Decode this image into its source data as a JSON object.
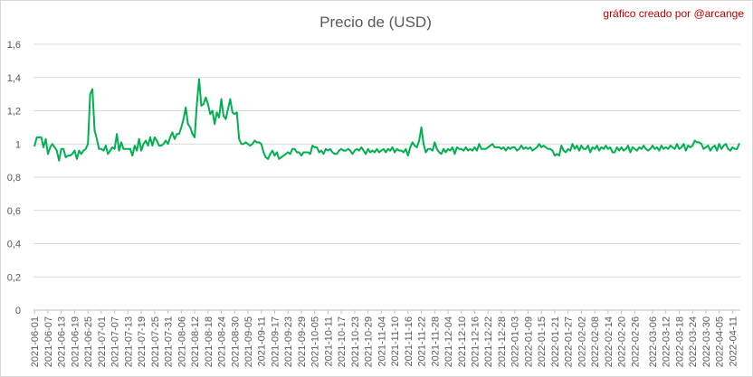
{
  "chart_data": {
    "type": "line",
    "title": "Precio de (USD)",
    "credit": "gráfico creado por @arcange",
    "colors": {
      "line": "#00b050",
      "credit": "#c00000",
      "grid": "#d9d9d9",
      "axis": "#bfbfbf",
      "text": "#595959"
    },
    "grid": true,
    "legend": "none",
    "ylim": [
      0,
      1.6
    ],
    "yticks": [
      0,
      0.2,
      0.4,
      0.6,
      0.8,
      1,
      1.2,
      1.4,
      1.6
    ],
    "ytick_labels": [
      "0",
      "0,2",
      "0,4",
      "0,6",
      "0,8",
      "1",
      "1,2",
      "1,4",
      "1,6"
    ],
    "x_start": "2021-06-01",
    "x_end": "2022-04-14",
    "x_tick_labels": [
      "2021-06-01",
      "2021-06-07",
      "2021-06-13",
      "2021-06-19",
      "2021-06-25",
      "2021-07-01",
      "2021-07-07",
      "2021-07-13",
      "2021-07-19",
      "2021-07-25",
      "2021-07-31",
      "2021-08-06",
      "2021-08-12",
      "2021-08-18",
      "2021-08-24",
      "2021-08-30",
      "2021-09-05",
      "2021-09-11",
      "2021-09-17",
      "2021-09-23",
      "2021-09-29",
      "2021-10-05",
      "2021-10-11",
      "2021-10-17",
      "2021-10-23",
      "2021-10-29",
      "2021-11-04",
      "2021-11-10",
      "2021-11-16",
      "2021-11-22",
      "2021-11-28",
      "2021-12-04",
      "2021-12-10",
      "2021-12-16",
      "2021-12-22",
      "2021-12-28",
      "2022-01-03",
      "2022-01-09",
      "2022-01-15",
      "2022-01-21",
      "2022-01-27",
      "2022-02-02",
      "2022-02-08",
      "2022-02-14",
      "2022-02-20",
      "2022-02-26",
      "2022-03-06",
      "2022-03-12",
      "2022-03-18",
      "2022-03-24",
      "2022-03-30",
      "2022-04-05",
      "2022-04-11"
    ],
    "points": [
      [
        "2021-06-01",
        0.99
      ],
      [
        "2021-06-02",
        1.04
      ],
      [
        "2021-06-03",
        1.04
      ],
      [
        "2021-06-04",
        1.04
      ],
      [
        "2021-06-05",
        0.98
      ],
      [
        "2021-06-06",
        1.03
      ],
      [
        "2021-06-07",
        0.94
      ],
      [
        "2021-06-08",
        0.98
      ],
      [
        "2021-06-09",
        1.0
      ],
      [
        "2021-06-10",
        0.98
      ],
      [
        "2021-06-11",
        0.96
      ],
      [
        "2021-06-12",
        0.9
      ],
      [
        "2021-06-13",
        0.97
      ],
      [
        "2021-06-14",
        0.97
      ],
      [
        "2021-06-15",
        0.92
      ],
      [
        "2021-06-16",
        0.93
      ],
      [
        "2021-06-17",
        0.93
      ],
      [
        "2021-06-18",
        0.94
      ],
      [
        "2021-06-19",
        0.96
      ],
      [
        "2021-06-20",
        0.91
      ],
      [
        "2021-06-21",
        0.96
      ],
      [
        "2021-06-22",
        0.94
      ],
      [
        "2021-06-23",
        0.96
      ],
      [
        "2021-06-24",
        0.97
      ],
      [
        "2021-06-25",
        1.0
      ],
      [
        "2021-06-26",
        1.3
      ],
      [
        "2021-06-27",
        1.33
      ],
      [
        "2021-06-28",
        1.08
      ],
      [
        "2021-06-29",
        1.03
      ],
      [
        "2021-06-30",
        0.97
      ],
      [
        "2021-07-01",
        0.97
      ],
      [
        "2021-07-02",
        0.96
      ],
      [
        "2021-07-03",
        0.99
      ],
      [
        "2021-07-04",
        0.94
      ],
      [
        "2021-07-05",
        0.96
      ],
      [
        "2021-07-06",
        0.98
      ],
      [
        "2021-07-07",
        0.97
      ],
      [
        "2021-07-08",
        1.06
      ],
      [
        "2021-07-09",
        0.96
      ],
      [
        "2021-07-10",
        1.01
      ],
      [
        "2021-07-11",
        0.97
      ],
      [
        "2021-07-12",
        0.97
      ],
      [
        "2021-07-13",
        0.97
      ],
      [
        "2021-07-14",
        0.97
      ],
      [
        "2021-07-15",
        0.93
      ],
      [
        "2021-07-16",
        0.99
      ],
      [
        "2021-07-17",
        0.96
      ],
      [
        "2021-07-18",
        1.03
      ],
      [
        "2021-07-19",
        0.96
      ],
      [
        "2021-07-20",
        1.0
      ],
      [
        "2021-07-21",
        1.02
      ],
      [
        "2021-07-22",
        0.99
      ],
      [
        "2021-07-23",
        1.04
      ],
      [
        "2021-07-24",
        0.99
      ],
      [
        "2021-07-25",
        1.04
      ],
      [
        "2021-07-26",
        1.02
      ],
      [
        "2021-07-27",
        0.99
      ],
      [
        "2021-07-28",
        0.99
      ],
      [
        "2021-07-29",
        1.0
      ],
      [
        "2021-07-30",
        1.02
      ],
      [
        "2021-07-31",
        1.0
      ],
      [
        "2021-08-01",
        1.04
      ],
      [
        "2021-08-02",
        1.07
      ],
      [
        "2021-08-03",
        1.03
      ],
      [
        "2021-08-04",
        1.06
      ],
      [
        "2021-08-05",
        1.06
      ],
      [
        "2021-08-06",
        1.1
      ],
      [
        "2021-08-07",
        1.15
      ],
      [
        "2021-08-08",
        1.22
      ],
      [
        "2021-08-09",
        1.12
      ],
      [
        "2021-08-10",
        1.1
      ],
      [
        "2021-08-11",
        1.06
      ],
      [
        "2021-08-12",
        1.04
      ],
      [
        "2021-08-13",
        1.24
      ],
      [
        "2021-08-14",
        1.39
      ],
      [
        "2021-08-15",
        1.23
      ],
      [
        "2021-08-16",
        1.24
      ],
      [
        "2021-08-17",
        1.28
      ],
      [
        "2021-08-18",
        1.24
      ],
      [
        "2021-08-19",
        1.18
      ],
      [
        "2021-08-20",
        1.2
      ],
      [
        "2021-08-21",
        1.12
      ],
      [
        "2021-08-22",
        1.19
      ],
      [
        "2021-08-23",
        1.16
      ],
      [
        "2021-08-24",
        1.27
      ],
      [
        "2021-08-25",
        1.17
      ],
      [
        "2021-08-26",
        1.15
      ],
      [
        "2021-08-27",
        1.21
      ],
      [
        "2021-08-28",
        1.27
      ],
      [
        "2021-08-29",
        1.19
      ],
      [
        "2021-08-30",
        1.18
      ],
      [
        "2021-08-31",
        1.19
      ],
      [
        "2021-09-01",
        1.03
      ],
      [
        "2021-09-02",
        1.0
      ],
      [
        "2021-09-03",
        1.0
      ],
      [
        "2021-09-04",
        1.01
      ],
      [
        "2021-09-05",
        1.0
      ],
      [
        "2021-09-06",
        0.99
      ],
      [
        "2021-09-07",
        1.0
      ],
      [
        "2021-09-08",
        1.02
      ],
      [
        "2021-09-09",
        1.01
      ],
      [
        "2021-09-10",
        1.01
      ],
      [
        "2021-09-11",
        1.0
      ],
      [
        "2021-09-12",
        0.95
      ],
      [
        "2021-09-13",
        0.92
      ],
      [
        "2021-09-14",
        0.91
      ],
      [
        "2021-09-15",
        0.94
      ],
      [
        "2021-09-16",
        0.96
      ],
      [
        "2021-09-17",
        0.93
      ],
      [
        "2021-09-18",
        0.95
      ],
      [
        "2021-09-19",
        0.91
      ],
      [
        "2021-09-20",
        0.92
      ],
      [
        "2021-09-21",
        0.93
      ],
      [
        "2021-09-22",
        0.94
      ],
      [
        "2021-09-23",
        0.95
      ],
      [
        "2021-09-24",
        0.94
      ],
      [
        "2021-09-25",
        0.97
      ],
      [
        "2021-09-26",
        0.97
      ],
      [
        "2021-09-27",
        0.95
      ],
      [
        "2021-09-28",
        0.95
      ],
      [
        "2021-09-29",
        0.93
      ],
      [
        "2021-09-30",
        0.95
      ],
      [
        "2021-10-01",
        0.95
      ],
      [
        "2021-10-02",
        0.95
      ],
      [
        "2021-10-03",
        0.94
      ],
      [
        "2021-10-04",
        0.99
      ],
      [
        "2021-10-05",
        0.98
      ],
      [
        "2021-10-06",
        0.98
      ],
      [
        "2021-10-07",
        0.95
      ],
      [
        "2021-10-08",
        0.96
      ],
      [
        "2021-10-09",
        0.94
      ],
      [
        "2021-10-10",
        0.97
      ],
      [
        "2021-10-11",
        0.96
      ],
      [
        "2021-10-12",
        0.97
      ],
      [
        "2021-10-13",
        0.95
      ],
      [
        "2021-10-14",
        0.94
      ],
      [
        "2021-10-15",
        0.94
      ],
      [
        "2021-10-16",
        0.96
      ],
      [
        "2021-10-17",
        0.97
      ],
      [
        "2021-10-18",
        0.96
      ],
      [
        "2021-10-19",
        0.96
      ],
      [
        "2021-10-20",
        0.97
      ],
      [
        "2021-10-21",
        0.96
      ],
      [
        "2021-10-22",
        0.94
      ],
      [
        "2021-10-23",
        0.96
      ],
      [
        "2021-10-24",
        0.97
      ],
      [
        "2021-10-25",
        0.96
      ],
      [
        "2021-10-26",
        0.98
      ],
      [
        "2021-10-27",
        0.96
      ],
      [
        "2021-10-28",
        0.94
      ],
      [
        "2021-10-29",
        0.97
      ],
      [
        "2021-10-30",
        0.95
      ],
      [
        "2021-10-31",
        0.96
      ],
      [
        "2021-11-01",
        0.95
      ],
      [
        "2021-11-02",
        0.97
      ],
      [
        "2021-11-03",
        0.95
      ],
      [
        "2021-11-04",
        0.96
      ],
      [
        "2021-11-05",
        0.97
      ],
      [
        "2021-11-06",
        0.95
      ],
      [
        "2021-11-07",
        0.97
      ],
      [
        "2021-11-08",
        0.96
      ],
      [
        "2021-11-09",
        0.98
      ],
      [
        "2021-11-10",
        0.95
      ],
      [
        "2021-11-11",
        0.97
      ],
      [
        "2021-11-12",
        0.96
      ],
      [
        "2021-11-13",
        0.96
      ],
      [
        "2021-11-14",
        0.95
      ],
      [
        "2021-11-15",
        0.97
      ],
      [
        "2021-11-16",
        0.93
      ],
      [
        "2021-11-17",
        0.98
      ],
      [
        "2021-11-18",
        1.01
      ],
      [
        "2021-11-19",
        0.99
      ],
      [
        "2021-11-20",
        0.98
      ],
      [
        "2021-11-21",
        1.02
      ],
      [
        "2021-11-22",
        1.1
      ],
      [
        "2021-11-23",
        1.0
      ],
      [
        "2021-11-24",
        0.95
      ],
      [
        "2021-11-25",
        0.97
      ],
      [
        "2021-11-26",
        0.97
      ],
      [
        "2021-11-27",
        0.96
      ],
      [
        "2021-11-28",
        1.01
      ],
      [
        "2021-11-29",
        0.97
      ],
      [
        "2021-11-30",
        0.95
      ],
      [
        "2021-12-01",
        0.94
      ],
      [
        "2021-12-02",
        0.97
      ],
      [
        "2021-12-03",
        0.95
      ],
      [
        "2021-12-04",
        0.97
      ],
      [
        "2021-12-05",
        0.96
      ],
      [
        "2021-12-06",
        0.98
      ],
      [
        "2021-12-07",
        0.94
      ],
      [
        "2021-12-08",
        0.98
      ],
      [
        "2021-12-09",
        0.97
      ],
      [
        "2021-12-10",
        0.97
      ],
      [
        "2021-12-11",
        0.96
      ],
      [
        "2021-12-12",
        0.98
      ],
      [
        "2021-12-13",
        0.96
      ],
      [
        "2021-12-14",
        0.97
      ],
      [
        "2021-12-15",
        0.96
      ],
      [
        "2021-12-16",
        0.98
      ],
      [
        "2021-12-17",
        0.96
      ],
      [
        "2021-12-18",
        1.0
      ],
      [
        "2021-12-19",
        0.97
      ],
      [
        "2021-12-20",
        0.97
      ],
      [
        "2021-12-21",
        0.97
      ],
      [
        "2021-12-22",
        0.98
      ],
      [
        "2021-12-23",
        0.99
      ],
      [
        "2021-12-24",
        1.0
      ],
      [
        "2021-12-25",
        0.98
      ],
      [
        "2021-12-26",
        0.98
      ],
      [
        "2021-12-27",
        0.98
      ],
      [
        "2021-12-28",
        0.97
      ],
      [
        "2021-12-29",
        0.98
      ],
      [
        "2021-12-30",
        0.96
      ],
      [
        "2021-12-31",
        0.98
      ],
      [
        "2022-01-01",
        0.97
      ],
      [
        "2022-01-02",
        0.98
      ],
      [
        "2022-01-03",
        0.98
      ],
      [
        "2022-01-04",
        0.96
      ],
      [
        "2022-01-05",
        0.97
      ],
      [
        "2022-01-06",
        0.99
      ],
      [
        "2022-01-07",
        0.97
      ],
      [
        "2022-01-08",
        0.98
      ],
      [
        "2022-01-09",
        0.97
      ],
      [
        "2022-01-10",
        0.98
      ],
      [
        "2022-01-11",
        0.96
      ],
      [
        "2022-01-12",
        0.97
      ],
      [
        "2022-01-13",
        0.98
      ],
      [
        "2022-01-14",
        1.0
      ],
      [
        "2022-01-15",
        0.98
      ],
      [
        "2022-01-16",
        0.99
      ],
      [
        "2022-01-17",
        0.98
      ],
      [
        "2022-01-18",
        0.97
      ],
      [
        "2022-01-19",
        0.97
      ],
      [
        "2022-01-20",
        0.96
      ],
      [
        "2022-01-21",
        0.93
      ],
      [
        "2022-01-22",
        0.94
      ],
      [
        "2022-01-23",
        0.93
      ],
      [
        "2022-01-24",
        0.99
      ],
      [
        "2022-01-25",
        0.96
      ],
      [
        "2022-01-26",
        0.95
      ],
      [
        "2022-01-27",
        0.97
      ],
      [
        "2022-01-28",
        0.96
      ],
      [
        "2022-01-29",
        1.0
      ],
      [
        "2022-01-30",
        0.97
      ],
      [
        "2022-01-31",
        0.99
      ],
      [
        "2022-02-01",
        0.96
      ],
      [
        "2022-02-02",
        0.99
      ],
      [
        "2022-02-03",
        0.97
      ],
      [
        "2022-02-04",
        0.97
      ],
      [
        "2022-02-05",
        0.99
      ],
      [
        "2022-02-06",
        0.95
      ],
      [
        "2022-02-07",
        0.98
      ],
      [
        "2022-02-08",
        0.97
      ],
      [
        "2022-02-09",
        0.99
      ],
      [
        "2022-02-10",
        0.96
      ],
      [
        "2022-02-11",
        0.98
      ],
      [
        "2022-02-12",
        0.97
      ],
      [
        "2022-02-13",
        0.99
      ],
      [
        "2022-02-14",
        0.97
      ],
      [
        "2022-02-15",
        0.98
      ],
      [
        "2022-02-16",
        0.95
      ],
      [
        "2022-02-17",
        0.95
      ],
      [
        "2022-02-18",
        0.98
      ],
      [
        "2022-02-19",
        0.96
      ],
      [
        "2022-02-20",
        0.98
      ],
      [
        "2022-02-21",
        0.96
      ],
      [
        "2022-02-22",
        0.97
      ],
      [
        "2022-02-23",
        0.99
      ],
      [
        "2022-02-24",
        0.95
      ],
      [
        "2022-02-25",
        0.98
      ],
      [
        "2022-02-26",
        0.97
      ],
      [
        "2022-02-27",
        0.96
      ],
      [
        "2022-02-28",
        0.98
      ],
      [
        "2022-03-01",
        0.97
      ],
      [
        "2022-03-02",
        0.99
      ],
      [
        "2022-03-03",
        0.97
      ],
      [
        "2022-03-04",
        0.96
      ],
      [
        "2022-03-05",
        0.97
      ],
      [
        "2022-03-06",
        0.99
      ],
      [
        "2022-03-07",
        0.97
      ],
      [
        "2022-03-08",
        0.98
      ],
      [
        "2022-03-09",
        0.96
      ],
      [
        "2022-03-10",
        0.99
      ],
      [
        "2022-03-11",
        0.97
      ],
      [
        "2022-03-12",
        0.98
      ],
      [
        "2022-03-13",
        0.97
      ],
      [
        "2022-03-14",
        0.99
      ],
      [
        "2022-03-15",
        0.98
      ],
      [
        "2022-03-16",
        0.97
      ],
      [
        "2022-03-17",
        1.0
      ],
      [
        "2022-03-18",
        0.97
      ],
      [
        "2022-03-19",
        0.98
      ],
      [
        "2022-03-20",
        1.0
      ],
      [
        "2022-03-21",
        0.96
      ],
      [
        "2022-03-22",
        0.99
      ],
      [
        "2022-03-23",
        0.98
      ],
      [
        "2022-03-24",
        0.99
      ],
      [
        "2022-03-25",
        1.02
      ],
      [
        "2022-03-26",
        1.01
      ],
      [
        "2022-03-27",
        1.01
      ],
      [
        "2022-03-28",
        1.0
      ],
      [
        "2022-03-29",
        0.97
      ],
      [
        "2022-03-30",
        0.98
      ],
      [
        "2022-03-31",
        0.99
      ],
      [
        "2022-04-01",
        0.96
      ],
      [
        "2022-04-02",
        0.98
      ],
      [
        "2022-04-03",
        0.99
      ],
      [
        "2022-04-04",
        0.96
      ],
      [
        "2022-04-05",
        1.0
      ],
      [
        "2022-04-06",
        0.97
      ],
      [
        "2022-04-07",
        0.99
      ],
      [
        "2022-04-08",
        1.0
      ],
      [
        "2022-04-09",
        0.97
      ],
      [
        "2022-04-10",
        0.96
      ],
      [
        "2022-04-11",
        0.98
      ],
      [
        "2022-04-12",
        0.97
      ],
      [
        "2022-04-13",
        0.97
      ],
      [
        "2022-04-14",
        1.0
      ]
    ]
  }
}
